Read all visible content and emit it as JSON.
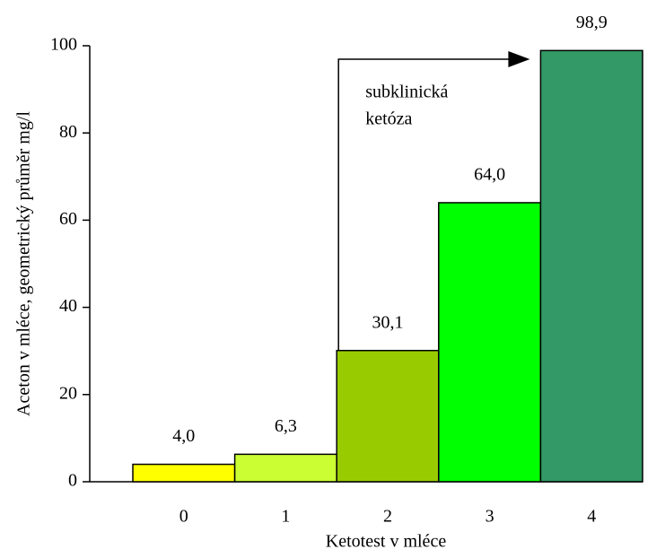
{
  "chart_data": {
    "type": "bar",
    "categories": [
      "0",
      "1",
      "2",
      "3",
      "4"
    ],
    "values": [
      4.0,
      6.3,
      30.1,
      64.0,
      98.9
    ],
    "value_labels": [
      "4,0",
      "6,3",
      "30,1",
      "64,0",
      "98,9"
    ],
    "colors": [
      "#ffff00",
      "#ccff33",
      "#99cc00",
      "#00ff00",
      "#339966"
    ],
    "x_label": "Ketotest v mléce",
    "y_label": "Aceton v mléce, geometrický průměr mg/l",
    "annotation": [
      "subklinická",
      "ketóza"
    ],
    "ylim": [
      0,
      100
    ],
    "yticks": [
      0,
      20,
      40,
      60,
      80,
      100
    ],
    "grid": false
  }
}
